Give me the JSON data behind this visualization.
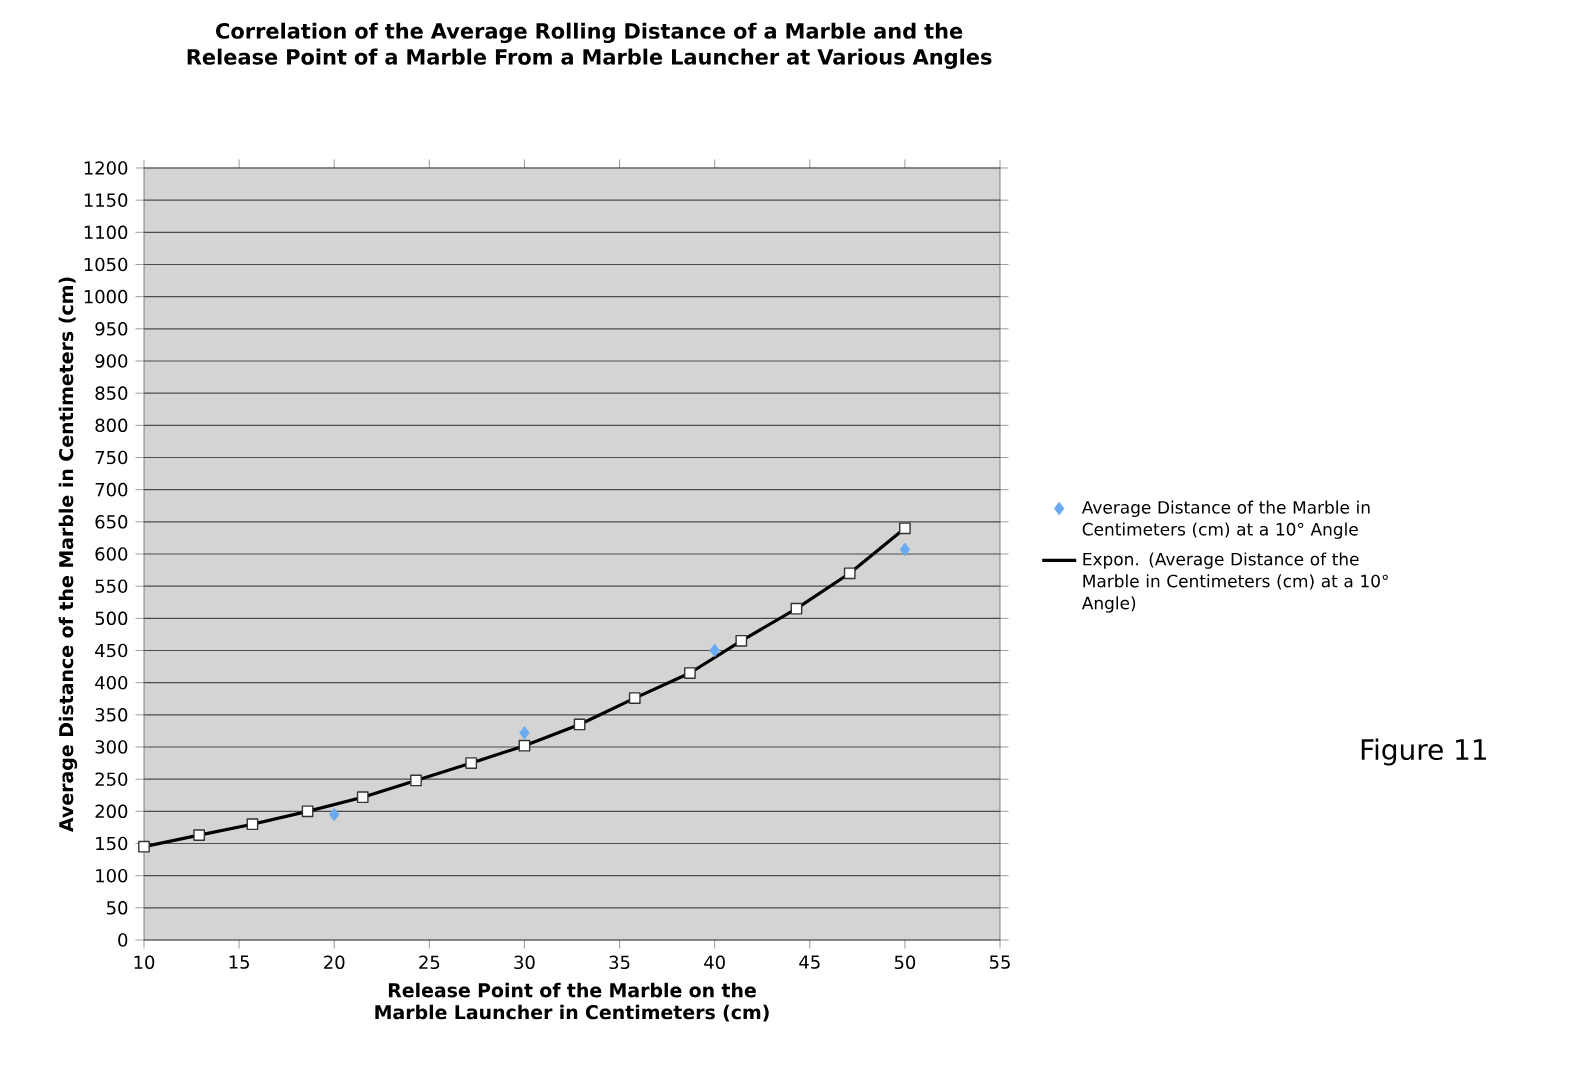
{
  "chart_data": {
    "type": "scatter",
    "title": "Correlation of the Average Rolling Distance of a Marble and the Release Point of a Marble From a Marble Launcher at Various Angles",
    "xlabel": "Release Point of the Marble on the Marble Launcher in Centimeters (cm)",
    "ylabel": "Average Distance of the Marble in Centimeters (cm)",
    "xlim": [
      10,
      55
    ],
    "xticks": [
      10,
      15,
      20,
      25,
      30,
      35,
      40,
      45,
      50,
      55
    ],
    "ylim": [
      0,
      1200
    ],
    "yticks": [
      0,
      50,
      100,
      150,
      200,
      250,
      300,
      350,
      400,
      450,
      500,
      550,
      600,
      650,
      700,
      750,
      800,
      850,
      900,
      950,
      1000,
      1050,
      1100,
      1150,
      1200
    ],
    "grid": "y",
    "legend": "right",
    "marker": "diamond",
    "annotations": [
      "Figure 11"
    ],
    "series": [
      {
        "name": "Average Distance of the Marble in Centimeters (cm) at a 10° Angle",
        "color": "#6aaaf0",
        "x": [
          20,
          30,
          40,
          50
        ],
        "values": [
          195,
          322,
          450,
          607
        ]
      },
      {
        "name": "Expon. (Average Distance of the Marble in Centimeters (cm) at a 10° Angle)",
        "type": "line",
        "color": "#000000",
        "marker": "square",
        "x": [
          10,
          12.9,
          15.7,
          18.6,
          21.5,
          24.3,
          27.2,
          30,
          32.9,
          35.8,
          38.7,
          41.4,
          44.3,
          47.1,
          50
        ],
        "values": [
          145,
          163,
          180,
          200,
          222,
          248,
          275,
          302,
          335,
          376,
          415,
          465,
          515,
          570,
          640
        ]
      }
    ]
  }
}
